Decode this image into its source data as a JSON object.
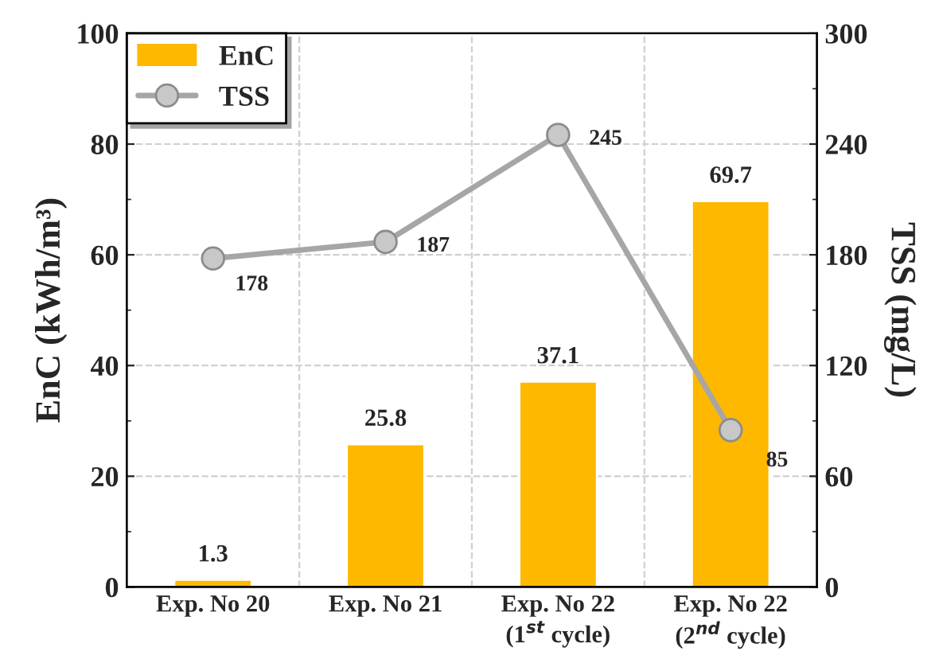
{
  "chart_data": {
    "type": "bar",
    "categories": [
      "Exp. No 20",
      "Exp. No 21",
      "Exp. No 22\n(1$^{st}$ cycle)",
      "Exp. No 22\n(2$^{nd}$ cycle)"
    ],
    "ylabel": "EnC (kWh/m³)",
    "y2label": "TSS (mg/L)",
    "series": [
      {
        "name": "EnC",
        "color": "#ffb800",
        "values": [
          1.3,
          25.8,
          37.1,
          69.7
        ]
      },
      {
        "name": "TSS",
        "type": "line",
        "axis": "y2",
        "color": "#a6a6a6",
        "values": [
          178,
          187,
          245,
          85
        ]
      }
    ],
    "ylim": [
      0,
      100
    ],
    "yticks": [
      0,
      20,
      40,
      60,
      80,
      100
    ],
    "y2lim": [
      0,
      300
    ],
    "y2ticks": [
      0,
      60,
      120,
      180,
      240,
      300
    ],
    "data_labels": true,
    "grid": true,
    "legend": "top left",
    "marker": "circle",
    "line_style": "solid"
  }
}
